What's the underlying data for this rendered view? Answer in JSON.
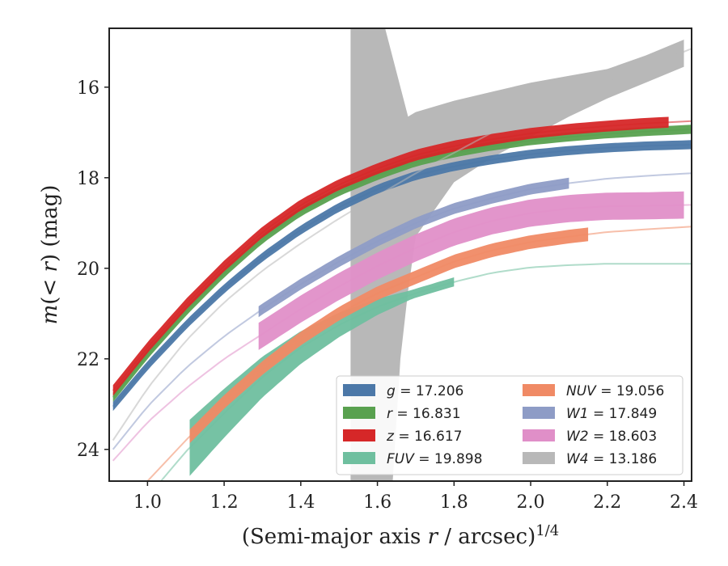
{
  "chart_data": {
    "type": "line",
    "title": "",
    "xlabel": "(Semi-major axis r / arcsec)^1/4",
    "ylabel": "m(<r) (mag)",
    "xlim": [
      0.9,
      2.42
    ],
    "ylim": [
      24.7,
      14.7
    ],
    "y_inverted": true,
    "xticks": [
      "1.0",
      "1.2",
      "1.4",
      "1.6",
      "1.8",
      "2.0",
      "2.2",
      "2.4"
    ],
    "yticks": [
      "16",
      "18",
      "20",
      "22",
      "24"
    ],
    "grid": false,
    "legend_position": "lower-right",
    "series": [
      {
        "name": "g",
        "label_value": "17.206",
        "color": "#4c78a8",
        "x": [
          0.91,
          1.0,
          1.1,
          1.2,
          1.3,
          1.4,
          1.5,
          1.6,
          1.7,
          1.8,
          1.9,
          2.0,
          2.1,
          2.2,
          2.3,
          2.42
        ],
        "y": [
          23.05,
          22.15,
          21.25,
          20.45,
          19.75,
          19.15,
          18.65,
          18.25,
          17.95,
          17.75,
          17.6,
          17.48,
          17.4,
          17.34,
          17.3,
          17.27
        ],
        "solid_until": 2.42,
        "band": 0.1
      },
      {
        "name": "r",
        "label_value": "16.831",
        "color": "#59a14f",
        "x": [
          0.91,
          1.0,
          1.1,
          1.2,
          1.3,
          1.4,
          1.5,
          1.6,
          1.7,
          1.8,
          1.9,
          2.0,
          2.1,
          2.2,
          2.3,
          2.42
        ],
        "y": [
          22.85,
          21.9,
          20.95,
          20.1,
          19.35,
          18.75,
          18.3,
          17.95,
          17.65,
          17.45,
          17.3,
          17.18,
          17.1,
          17.03,
          16.98,
          16.93
        ],
        "solid_until": 2.42,
        "band": 0.1
      },
      {
        "name": "z",
        "label_value": "16.617",
        "color": "#d62728",
        "x": [
          0.91,
          1.0,
          1.1,
          1.2,
          1.3,
          1.4,
          1.5,
          1.6,
          1.7,
          1.8,
          1.9,
          2.0,
          2.1,
          2.2,
          2.3,
          2.42
        ],
        "y": [
          22.7,
          21.75,
          20.8,
          19.95,
          19.2,
          18.6,
          18.15,
          17.8,
          17.5,
          17.3,
          17.15,
          17.02,
          16.93,
          16.86,
          16.8,
          16.75
        ],
        "solid_until": 2.36,
        "band": 0.12
      },
      {
        "name": "FUV",
        "label_value": "19.898",
        "color": "#6fbf9f",
        "x": [
          0.9,
          1.0,
          1.1,
          1.2,
          1.3,
          1.4,
          1.5,
          1.6,
          1.7,
          1.8,
          1.9,
          2.0,
          2.1,
          2.2,
          2.3,
          2.42
        ],
        "y": [
          26.1,
          25.05,
          24.05,
          23.2,
          22.4,
          21.75,
          21.25,
          20.85,
          20.55,
          20.3,
          20.1,
          19.98,
          19.93,
          19.9,
          19.9,
          19.9
        ],
        "solid_from": 1.11,
        "solid_until": 1.8,
        "band": 0.3,
        "band_lower": [
          0,
          0,
          24.8,
          24.1,
          23.1,
          22.1,
          21.5,
          21.0,
          20.6,
          20.3
        ],
        "band_upper": [
          0,
          0,
          23.3,
          22.6,
          21.9,
          21.4,
          21.0,
          20.7,
          20.45,
          20.1
        ]
      },
      {
        "name": "NUV",
        "label_value": "19.056",
        "color": "#f08a65",
        "x": [
          0.9,
          1.0,
          1.1,
          1.2,
          1.3,
          1.4,
          1.5,
          1.6,
          1.7,
          1.8,
          1.9,
          2.0,
          2.1,
          2.2,
          2.3,
          2.42
        ],
        "y": [
          25.6,
          24.7,
          23.8,
          22.95,
          22.2,
          21.55,
          21.0,
          20.55,
          20.2,
          19.85,
          19.6,
          19.42,
          19.3,
          19.2,
          19.14,
          19.08
        ],
        "solid_from": 1.11,
        "solid_until": 2.15,
        "band": 0.15
      },
      {
        "name": "W1",
        "label_value": "17.849",
        "color": "#8e9cc6",
        "x": [
          0.91,
          1.0,
          1.1,
          1.2,
          1.3,
          1.4,
          1.5,
          1.6,
          1.7,
          1.8,
          1.9,
          2.0,
          2.1,
          2.2,
          2.3,
          2.42
        ],
        "y": [
          24.0,
          23.05,
          22.2,
          21.5,
          20.9,
          20.35,
          19.85,
          19.4,
          19.0,
          18.68,
          18.45,
          18.25,
          18.12,
          18.02,
          17.96,
          17.9
        ],
        "solid_from": 1.29,
        "solid_until": 2.1,
        "band": 0.12
      },
      {
        "name": "W2",
        "label_value": "18.603",
        "color": "#e08fc8",
        "x": [
          0.91,
          1.0,
          1.1,
          1.2,
          1.3,
          1.4,
          1.5,
          1.6,
          1.7,
          1.8,
          1.9,
          2.0,
          2.1,
          2.2,
          2.3,
          2.42
        ],
        "y": [
          24.25,
          23.4,
          22.65,
          22.0,
          21.45,
          20.9,
          20.4,
          19.95,
          19.55,
          19.2,
          18.95,
          18.78,
          18.68,
          18.63,
          18.62,
          18.6
        ],
        "solid_from": 1.29,
        "solid_until": 2.4,
        "band": 0.3
      },
      {
        "name": "W4",
        "label_value": "13.186",
        "color": "#b8b8b8",
        "x": [
          0.91,
          1.0,
          1.1,
          1.2,
          1.3,
          1.4,
          1.5,
          1.6,
          1.7,
          1.8,
          1.9,
          2.0,
          2.1,
          2.2,
          2.3,
          2.42
        ],
        "y": [
          23.8,
          22.65,
          21.6,
          20.75,
          20.05,
          19.45,
          18.9,
          18.4,
          17.9,
          17.45,
          17.0,
          16.6,
          16.25,
          15.9,
          15.55,
          15.15
        ],
        "solid_from": 1.53,
        "solid_until": 2.4,
        "band_lower_pts": [
          [
            1.53,
            14.7
          ],
          [
            1.62,
            14.7
          ],
          [
            1.68,
            16.65
          ],
          [
            1.7,
            16.55
          ],
          [
            1.8,
            16.3
          ],
          [
            1.9,
            16.1
          ],
          [
            2.0,
            15.9
          ],
          [
            2.1,
            15.75
          ],
          [
            2.2,
            15.6
          ],
          [
            2.3,
            15.3
          ],
          [
            2.4,
            14.95
          ]
        ],
        "band_upper_pts": [
          [
            2.4,
            15.55
          ],
          [
            2.3,
            15.9
          ],
          [
            2.2,
            16.25
          ],
          [
            2.1,
            16.65
          ],
          [
            2.0,
            17.1
          ],
          [
            1.9,
            17.55
          ],
          [
            1.8,
            18.1
          ],
          [
            1.75,
            18.7
          ],
          [
            1.7,
            19.3
          ],
          [
            1.68,
            20.5
          ],
          [
            1.66,
            22.0
          ],
          [
            1.64,
            24.7
          ],
          [
            1.53,
            24.7
          ]
        ]
      }
    ]
  }
}
